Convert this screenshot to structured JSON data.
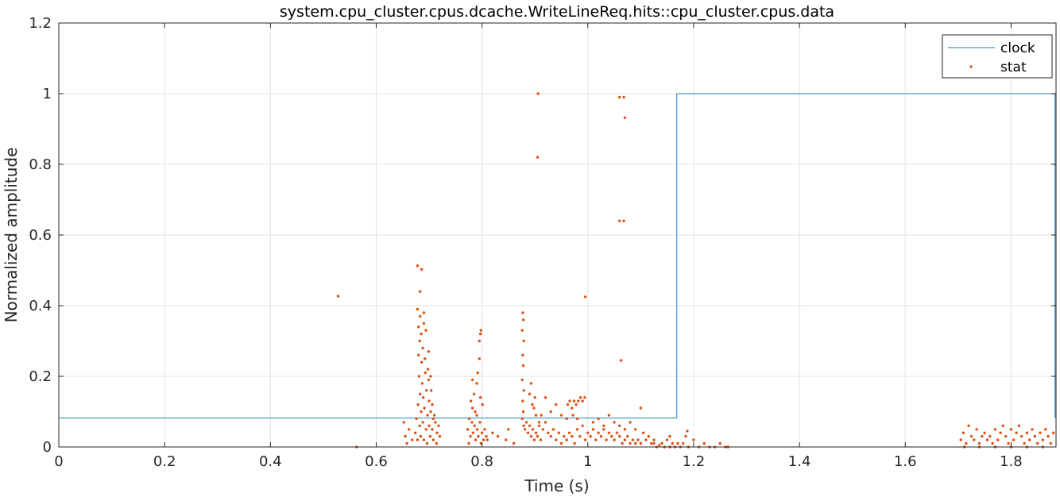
{
  "chart_data": {
    "type": "line",
    "title": "system.cpu_cluster.cpus.dcache.WriteLineReq.hits::cpu_cluster.cpus.data",
    "xlabel": "Time (s)",
    "ylabel": "Normalized amplitude",
    "xlim": [
      0,
      1.885
    ],
    "ylim": [
      0,
      1.2
    ],
    "xticks": [
      0,
      0.2,
      0.4,
      0.6,
      0.8,
      1,
      1.2,
      1.4,
      1.6,
      1.8
    ],
    "xtick_labels": [
      "0",
      "0.2",
      "0.4",
      "0.6",
      "0.8",
      "1",
      "1.2",
      "1.4",
      "1.6",
      "1.8"
    ],
    "yticks": [
      0,
      0.2,
      0.4,
      0.6,
      0.8,
      1,
      1.2
    ],
    "ytick_labels": [
      "0",
      "0.2",
      "0.4",
      "0.6",
      "0.8",
      "1",
      "1.2"
    ],
    "grid": true,
    "legend_position": "top-right",
    "series": [
      {
        "name": "clock",
        "kind": "step-line",
        "color": "#4a9dc7",
        "x": [
          0,
          1.168,
          1.168,
          1.883,
          1.883
        ],
        "y": [
          0.082,
          0.082,
          1.0,
          1.0,
          0.082
        ]
      },
      {
        "name": "stat",
        "kind": "scatter",
        "color": "#d95319",
        "points": [
          [
            0.528,
            0.427
          ],
          [
            0.563,
            0.0
          ],
          [
            0.906,
            1.0
          ],
          [
            0.905,
            0.82
          ],
          [
            0.995,
            0.425
          ],
          [
            1.06,
            0.99
          ],
          [
            1.068,
            0.99
          ],
          [
            1.07,
            0.932
          ],
          [
            1.06,
            0.64
          ],
          [
            1.068,
            0.64
          ],
          [
            1.063,
            0.245
          ],
          [
            0.678,
            0.513
          ],
          [
            0.686,
            0.503
          ],
          [
            0.683,
            0.44
          ],
          [
            0.678,
            0.39
          ],
          [
            0.683,
            0.37
          ],
          [
            0.69,
            0.38
          ],
          [
            0.68,
            0.34
          ],
          [
            0.685,
            0.32
          ],
          [
            0.69,
            0.35
          ],
          [
            0.682,
            0.3
          ],
          [
            0.688,
            0.28
          ],
          [
            0.694,
            0.33
          ],
          [
            0.68,
            0.26
          ],
          [
            0.686,
            0.24
          ],
          [
            0.692,
            0.25
          ],
          [
            0.698,
            0.22
          ],
          [
            0.681,
            0.2
          ],
          [
            0.687,
            0.18
          ],
          [
            0.693,
            0.21
          ],
          [
            0.699,
            0.19
          ],
          [
            0.683,
            0.15
          ],
          [
            0.689,
            0.14
          ],
          [
            0.695,
            0.16
          ],
          [
            0.7,
            0.13
          ],
          [
            0.679,
            0.12
          ],
          [
            0.685,
            0.1
          ],
          [
            0.691,
            0.11
          ],
          [
            0.697,
            0.09
          ],
          [
            0.703,
            0.1
          ],
          [
            0.708,
            0.08
          ],
          [
            0.676,
            0.08
          ],
          [
            0.682,
            0.06
          ],
          [
            0.688,
            0.07
          ],
          [
            0.694,
            0.05
          ],
          [
            0.7,
            0.06
          ],
          [
            0.706,
            0.05
          ],
          [
            0.712,
            0.07
          ],
          [
            0.715,
            0.04
          ],
          [
            0.718,
            0.06
          ],
          [
            0.72,
            0.03
          ],
          [
            0.674,
            0.04
          ],
          [
            0.678,
            0.02
          ],
          [
            0.684,
            0.03
          ],
          [
            0.69,
            0.02
          ],
          [
            0.696,
            0.01
          ],
          [
            0.702,
            0.03
          ],
          [
            0.708,
            0.02
          ],
          [
            0.714,
            0.01
          ],
          [
            0.652,
            0.07
          ],
          [
            0.655,
            0.03
          ],
          [
            0.658,
            0.01
          ],
          [
            0.662,
            0.05
          ],
          [
            0.668,
            0.02
          ],
          [
            0.699,
            0.27
          ],
          [
            0.703,
            0.2
          ],
          [
            0.706,
            0.12
          ],
          [
            0.704,
            0.16
          ],
          [
            0.71,
            0.09
          ],
          [
            0.782,
            0.19
          ],
          [
            0.785,
            0.15
          ],
          [
            0.779,
            0.13
          ],
          [
            0.782,
            0.11
          ],
          [
            0.787,
            0.1
          ],
          [
            0.79,
            0.09
          ],
          [
            0.776,
            0.08
          ],
          [
            0.781,
            0.07
          ],
          [
            0.786,
            0.06
          ],
          [
            0.791,
            0.05
          ],
          [
            0.796,
            0.07
          ],
          [
            0.8,
            0.04
          ],
          [
            0.773,
            0.05
          ],
          [
            0.778,
            0.03
          ],
          [
            0.783,
            0.04
          ],
          [
            0.788,
            0.02
          ],
          [
            0.793,
            0.03
          ],
          [
            0.798,
            0.01
          ],
          [
            0.803,
            0.02
          ],
          [
            0.792,
            0.21
          ],
          [
            0.795,
            0.25
          ],
          [
            0.79,
            0.18
          ],
          [
            0.797,
            0.14
          ],
          [
            0.801,
            0.12
          ],
          [
            0.795,
            0.3
          ],
          [
            0.798,
            0.33
          ],
          [
            0.797,
            0.32
          ],
          [
            0.775,
            0.01
          ],
          [
            0.805,
            0.05
          ],
          [
            0.808,
            0.03
          ],
          [
            0.81,
            0.02
          ],
          [
            0.82,
            0.04
          ],
          [
            0.83,
            0.03
          ],
          [
            0.845,
            0.02
          ],
          [
            0.86,
            0.01
          ],
          [
            0.85,
            0.05
          ],
          [
            0.877,
            0.38
          ],
          [
            0.878,
            0.36
          ],
          [
            0.876,
            0.33
          ],
          [
            0.879,
            0.3
          ],
          [
            0.877,
            0.26
          ],
          [
            0.878,
            0.23
          ],
          [
            0.876,
            0.19
          ],
          [
            0.879,
            0.16
          ],
          [
            0.877,
            0.13
          ],
          [
            0.878,
            0.1
          ],
          [
            0.876,
            0.08
          ],
          [
            0.879,
            0.06
          ],
          [
            0.881,
            0.05
          ],
          [
            0.884,
            0.07
          ],
          [
            0.887,
            0.04
          ],
          [
            0.89,
            0.06
          ],
          [
            0.893,
            0.03
          ],
          [
            0.896,
            0.05
          ],
          [
            0.899,
            0.02
          ],
          [
            0.902,
            0.04
          ],
          [
            0.905,
            0.03
          ],
          [
            0.908,
            0.06
          ],
          [
            0.911,
            0.02
          ],
          [
            0.89,
            0.15
          ],
          [
            0.893,
            0.18
          ],
          [
            0.895,
            0.12
          ],
          [
            0.898,
            0.11
          ],
          [
            0.902,
            0.09
          ],
          [
            0.9,
            0.14
          ],
          [
            0.908,
            0.07
          ],
          [
            0.912,
            0.09
          ],
          [
            0.915,
            0.05
          ],
          [
            0.92,
            0.07
          ],
          [
            0.925,
            0.04
          ],
          [
            0.93,
            0.03
          ],
          [
            0.935,
            0.05
          ],
          [
            0.94,
            0.02
          ],
          [
            0.945,
            0.04
          ],
          [
            0.95,
            0.01
          ],
          [
            0.955,
            0.03
          ],
          [
            0.96,
            0.02
          ],
          [
            0.965,
            0.04
          ],
          [
            0.97,
            0.03
          ],
          [
            0.975,
            0.01
          ],
          [
            0.92,
            0.14
          ],
          [
            0.93,
            0.1
          ],
          [
            0.94,
            0.12
          ],
          [
            0.95,
            0.09
          ],
          [
            0.96,
            0.08
          ],
          [
            0.962,
            0.12
          ],
          [
            0.966,
            0.13
          ],
          [
            0.97,
            0.11
          ],
          [
            0.974,
            0.13
          ],
          [
            0.978,
            0.12
          ],
          [
            0.982,
            0.13
          ],
          [
            0.986,
            0.14
          ],
          [
            0.99,
            0.13
          ],
          [
            0.994,
            0.14
          ],
          [
            0.972,
            0.09
          ],
          [
            0.98,
            0.08
          ],
          [
            0.98,
            0.05
          ],
          [
            0.985,
            0.03
          ],
          [
            0.99,
            0.06
          ],
          [
            0.995,
            0.02
          ],
          [
            1.0,
            0.04
          ],
          [
            1.005,
            0.03
          ],
          [
            1.01,
            0.05
          ],
          [
            1.015,
            0.02
          ],
          [
            1.02,
            0.04
          ],
          [
            1.025,
            0.03
          ],
          [
            1.03,
            0.05
          ],
          [
            1.035,
            0.02
          ],
          [
            1.04,
            0.04
          ],
          [
            1.045,
            0.03
          ],
          [
            1.05,
            0.02
          ],
          [
            1.055,
            0.04
          ],
          [
            1.06,
            0.03
          ],
          [
            1.065,
            0.01
          ],
          [
            1.07,
            0.02
          ],
          [
            1.075,
            0.03
          ],
          [
            1.08,
            0.01
          ],
          [
            1.085,
            0.02
          ],
          [
            1.09,
            0.01
          ],
          [
            1.095,
            0.02
          ],
          [
            1.1,
            0.01
          ],
          [
            1.01,
            0.07
          ],
          [
            1.02,
            0.08
          ],
          [
            1.03,
            0.06
          ],
          [
            1.04,
            0.09
          ],
          [
            1.05,
            0.07
          ],
          [
            1.06,
            0.06
          ],
          [
            1.07,
            0.05
          ],
          [
            1.08,
            0.07
          ],
          [
            1.09,
            0.05
          ],
          [
            1.1,
            0.11
          ],
          [
            1.105,
            0.04
          ],
          [
            1.11,
            0.02
          ],
          [
            1.115,
            0.03
          ],
          [
            1.12,
            0.01
          ],
          [
            1.125,
            0.02
          ],
          [
            1.13,
            0.0
          ],
          [
            1.14,
            0.01
          ],
          [
            1.145,
            0.0
          ],
          [
            1.15,
            0.02
          ],
          [
            1.155,
            0.0
          ],
          [
            1.16,
            0.01
          ],
          [
            1.165,
            0.0
          ],
          [
            1.17,
            0.01
          ],
          [
            1.175,
            0.0
          ],
          [
            1.18,
            0.01
          ],
          [
            1.185,
            0.03
          ],
          [
            1.19,
            0.0
          ],
          [
            1.2,
            0.02
          ],
          [
            1.21,
            0.0
          ],
          [
            1.22,
            0.01
          ],
          [
            1.23,
            0.0
          ],
          [
            1.24,
            0.0
          ],
          [
            1.25,
            0.01
          ],
          [
            1.26,
            0.0
          ],
          [
            1.265,
            0.0
          ],
          [
            1.188,
            0.045
          ],
          [
            1.125,
            0.01
          ],
          [
            1.135,
            0.005
          ],
          [
            1.155,
            0.03
          ],
          [
            1.705,
            0.02
          ],
          [
            1.71,
            0.04
          ],
          [
            1.715,
            0.01
          ],
          [
            1.72,
            0.06
          ],
          [
            1.725,
            0.03
          ],
          [
            1.73,
            0.02
          ],
          [
            1.735,
            0.05
          ],
          [
            1.74,
            0.01
          ],
          [
            1.745,
            0.03
          ],
          [
            1.75,
            0.04
          ],
          [
            1.755,
            0.02
          ],
          [
            1.76,
            0.03
          ],
          [
            1.765,
            0.01
          ],
          [
            1.77,
            0.05
          ],
          [
            1.775,
            0.02
          ],
          [
            1.78,
            0.04
          ],
          [
            1.785,
            0.06
          ],
          [
            1.79,
            0.03
          ],
          [
            1.795,
            0.01
          ],
          [
            1.8,
            0.05
          ],
          [
            1.805,
            0.02
          ],
          [
            1.81,
            0.04
          ],
          [
            1.815,
            0.06
          ],
          [
            1.82,
            0.03
          ],
          [
            1.825,
            0.01
          ],
          [
            1.83,
            0.04
          ],
          [
            1.835,
            0.02
          ],
          [
            1.84,
            0.05
          ],
          [
            1.845,
            0.03
          ],
          [
            1.85,
            0.01
          ],
          [
            1.855,
            0.04
          ],
          [
            1.86,
            0.02
          ],
          [
            1.865,
            0.05
          ],
          [
            1.87,
            0.03
          ],
          [
            1.875,
            0.01
          ],
          [
            1.88,
            0.04
          ],
          [
            1.712,
            0.0
          ],
          [
            1.74,
            0.0
          ],
          [
            1.77,
            0.0
          ],
          [
            1.8,
            0.0
          ],
          [
            1.83,
            0.0
          ],
          [
            1.86,
            0.0
          ]
        ]
      }
    ]
  },
  "colors": {
    "clock": "#4a9dc7",
    "stat": "#d95319",
    "grid": "#e3e3e3",
    "axis": "#262626"
  }
}
